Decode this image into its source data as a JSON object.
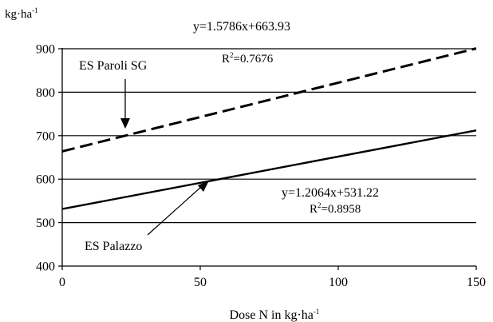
{
  "chart_data": {
    "type": "line",
    "ylabel": "kg·ha",
    "ylabel_sup": "-1",
    "xlabel": "Dose N in kg·ha",
    "xlabel_sup": "-1",
    "xlim": [
      0,
      150
    ],
    "ylim": [
      400,
      900
    ],
    "x_ticks": [
      0,
      50,
      100,
      150
    ],
    "y_ticks": [
      400,
      500,
      600,
      700,
      800,
      900
    ],
    "grid": "horizontal",
    "series": [
      {
        "name": "ES Paroli SG",
        "style": "dashed",
        "color": "#000000",
        "x": [
          0,
          150
        ],
        "y": [
          663.93,
          900.72
        ],
        "equation": "y=1.5786x+663.93",
        "r2_prefix": "R",
        "r2_sup": "2",
        "r2_value": "=0.7676"
      },
      {
        "name": "ES Palazzo",
        "style": "solid",
        "color": "#000000",
        "x": [
          0,
          150
        ],
        "y": [
          531.22,
          712.18
        ],
        "equation": "y=1.2064x+531.22",
        "r2_prefix": "R",
        "r2_sup": "2",
        "r2_value": "=0.8958"
      }
    ]
  }
}
